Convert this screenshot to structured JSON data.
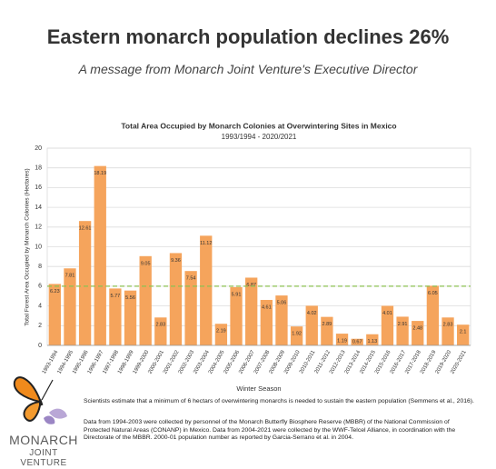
{
  "header": {
    "title": "Eastern monarch population declines 26%",
    "subtitle": "A  message from Monarch Joint Venture's Executive Director"
  },
  "chart_data": {
    "type": "bar",
    "title": "Total Area Occupied by Monarch Colonies at Overwintering Sites in Mexico",
    "subtitle": "1993/1994 - 2020/2021",
    "x_label": "Winter Season",
    "y_label": "Total Forest Area Occupied by Monarch Colonies (Hectares)",
    "categories": [
      "1993-1994",
      "1994-1995",
      "1995-1996",
      "1996-1997",
      "1997-1998",
      "1998-1999",
      "1999-2000",
      "2000-2001",
      "2001-2002",
      "2002-2003",
      "2003-2004",
      "2004-2005",
      "2005-2006",
      "2006-2007",
      "2007-2008",
      "2008-2009",
      "2009-2010",
      "2010-2011",
      "2011-2012",
      "2012-2013",
      "2013-2014",
      "2014-2015",
      "2015-2016",
      "2016-2017",
      "2017-2018",
      "2018-2019",
      "2019-2020",
      "2020-2021"
    ],
    "values": [
      6.23,
      7.81,
      12.61,
      18.19,
      5.77,
      5.56,
      9.05,
      2.83,
      9.36,
      7.54,
      11.12,
      2.19,
      5.91,
      6.87,
      4.61,
      5.06,
      1.92,
      4.02,
      2.89,
      1.19,
      0.67,
      1.13,
      4.01,
      2.91,
      2.48,
      6.05,
      2.83,
      2.1
    ],
    "color": "#f5a45c",
    "ylim": [
      0,
      20
    ],
    "yticks": [
      0,
      2,
      4,
      6,
      8,
      10,
      12,
      14,
      16,
      18,
      20
    ],
    "grid": true,
    "threshold": {
      "value": 6,
      "color": "#8cc152"
    }
  },
  "notes": [
    "Scientists estimate that a minimum of 6 hectars of overwintering monarchs is needed to sustain the eastern population (Semmens et al., 2016).",
    "Data from 1994-2003 were collected by personnel of the Monarch Butterfly Biosphere Reserve (MBBR) of the National Commission of Protected Natural Areas (CONANP) in Mexico. Data from 2004-2021 were collected by the WWF-Telcel Alliance, in coordination with the Directorate of the MBBR. 2000-01 population number as reported by Garcia-Serrano et al. in 2004."
  ],
  "logo": {
    "line1": "MONARCH",
    "line2": "JOINT VENTURE"
  }
}
